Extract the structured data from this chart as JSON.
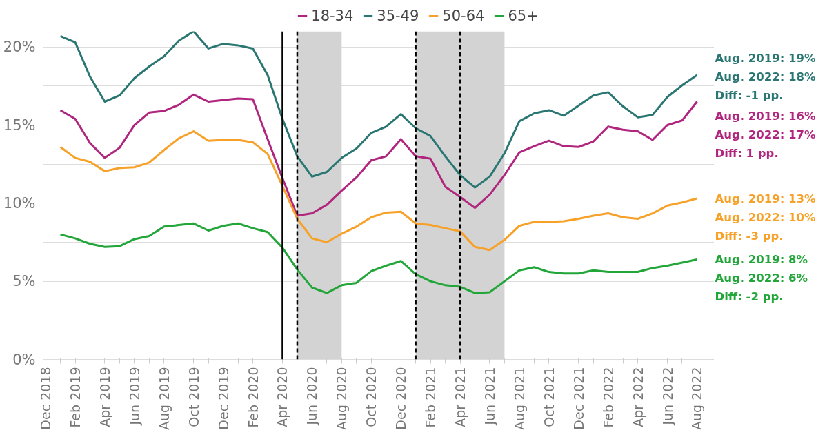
{
  "chart_data": {
    "type": "line",
    "x": [
      "2019-01",
      "2019-02",
      "2019-03",
      "2019-04",
      "2019-05",
      "2019-06",
      "2019-07",
      "2019-08",
      "2019-09",
      "2019-10",
      "2019-11",
      "2019-12",
      "2020-01",
      "2020-02",
      "2020-03",
      "2020-04",
      "2020-05",
      "2020-06",
      "2020-07",
      "2020-08",
      "2020-09",
      "2020-10",
      "2020-11",
      "2020-12",
      "2021-01",
      "2021-02",
      "2021-03",
      "2021-04",
      "2021-05",
      "2021-06",
      "2021-07",
      "2021-08",
      "2021-09",
      "2021-10",
      "2021-11",
      "2021-12",
      "2022-01",
      "2022-02",
      "2022-03",
      "2022-04",
      "2022-05",
      "2022-06",
      "2022-07",
      "2022-08"
    ],
    "series": [
      {
        "name": "18-34",
        "color": "#b0267e",
        "values": [
          15.95,
          15.4,
          13.85,
          12.9,
          13.55,
          15.0,
          15.8,
          15.9,
          16.3,
          16.95,
          16.5,
          16.6,
          16.7,
          16.65,
          14.1,
          11.6,
          9.2,
          9.35,
          9.9,
          10.8,
          11.65,
          12.75,
          13.0,
          14.1,
          13.0,
          12.85,
          11.05,
          10.4,
          9.7,
          10.55,
          11.8,
          13.25,
          13.65,
          14.0,
          13.65,
          13.6,
          13.95,
          14.9,
          14.7,
          14.6,
          14.05,
          15.0,
          15.3,
          16.5
        ]
      },
      {
        "name": "35-49",
        "color": "#2a7672",
        "values": [
          20.7,
          20.3,
          18.1,
          16.5,
          16.9,
          18.0,
          18.75,
          19.4,
          20.4,
          21.0,
          19.9,
          20.2,
          20.1,
          19.9,
          18.2,
          15.4,
          13.0,
          11.7,
          12.0,
          12.9,
          13.5,
          14.5,
          14.9,
          15.7,
          14.8,
          14.3,
          13.0,
          11.8,
          11.0,
          11.7,
          13.2,
          15.25,
          15.75,
          15.95,
          15.6,
          16.25,
          16.9,
          17.1,
          16.2,
          15.5,
          15.65,
          16.8,
          17.55,
          18.2
        ]
      },
      {
        "name": "50-64",
        "color": "#f7a128",
        "values": [
          13.6,
          12.9,
          12.65,
          12.05,
          12.25,
          12.3,
          12.6,
          13.4,
          14.15,
          14.6,
          14.0,
          14.05,
          14.05,
          13.9,
          13.15,
          11.1,
          9.0,
          7.75,
          7.5,
          8.05,
          8.5,
          9.1,
          9.4,
          9.45,
          8.7,
          8.6,
          8.4,
          8.2,
          7.2,
          7.0,
          7.65,
          8.55,
          8.8,
          8.8,
          8.85,
          9.0,
          9.2,
          9.35,
          9.1,
          9.0,
          9.35,
          9.85,
          10.05,
          10.3
        ]
      },
      {
        "name": "65+",
        "color": "#22a63a",
        "values": [
          8.0,
          7.75,
          7.4,
          7.2,
          7.25,
          7.7,
          7.9,
          8.5,
          8.6,
          8.7,
          8.25,
          8.55,
          8.7,
          8.4,
          8.15,
          7.15,
          5.75,
          4.6,
          4.25,
          4.75,
          4.9,
          5.65,
          6.0,
          6.3,
          5.45,
          5.0,
          4.75,
          4.65,
          4.25,
          4.3,
          5.0,
          5.7,
          5.9,
          5.6,
          5.5,
          5.5,
          5.7,
          5.6,
          5.6,
          5.6,
          5.85,
          6.0,
          6.2,
          6.4
        ]
      }
    ],
    "xlim": [
      "2018-11-26",
      "2022-09-06"
    ],
    "xticks": [
      {
        "value": "2018-12",
        "label": "Dec 2018"
      },
      {
        "value": "2019-01",
        "label": null
      },
      {
        "value": "2019-02",
        "label": "Feb 2019"
      },
      {
        "value": "2019-03",
        "label": null
      },
      {
        "value": "2019-04",
        "label": "Apr 2019"
      },
      {
        "value": "2019-05",
        "label": null
      },
      {
        "value": "2019-06",
        "label": "Jun 2019"
      },
      {
        "value": "2019-07",
        "label": null
      },
      {
        "value": "2019-08",
        "label": "Aug 2019"
      },
      {
        "value": "2019-09",
        "label": null
      },
      {
        "value": "2019-10",
        "label": "Oct 2019"
      },
      {
        "value": "2019-11",
        "label": null
      },
      {
        "value": "2019-12",
        "label": "Dec 2019"
      },
      {
        "value": "2020-01",
        "label": null
      },
      {
        "value": "2020-02",
        "label": "Feb 2020"
      },
      {
        "value": "2020-03",
        "label": null
      },
      {
        "value": "2020-04",
        "label": "Apr 2020"
      },
      {
        "value": "2020-05",
        "label": null
      },
      {
        "value": "2020-06",
        "label": "Jun 2020"
      },
      {
        "value": "2020-07",
        "label": null
      },
      {
        "value": "2020-08",
        "label": "Aug 2020"
      },
      {
        "value": "2020-09",
        "label": null
      },
      {
        "value": "2020-10",
        "label": "Oct 2020"
      },
      {
        "value": "2020-11",
        "label": null
      },
      {
        "value": "2020-12",
        "label": "Dec 2020"
      },
      {
        "value": "2021-01",
        "label": null
      },
      {
        "value": "2021-02",
        "label": "Feb 2021"
      },
      {
        "value": "2021-03",
        "label": null
      },
      {
        "value": "2021-04",
        "label": "Apr 2021"
      },
      {
        "value": "2021-05",
        "label": null
      },
      {
        "value": "2021-06",
        "label": "Jun 2021"
      },
      {
        "value": "2021-07",
        "label": null
      },
      {
        "value": "2021-08",
        "label": "Aug 2021"
      },
      {
        "value": "2021-09",
        "label": null
      },
      {
        "value": "2021-10",
        "label": "Oct 2021"
      },
      {
        "value": "2021-11",
        "label": null
      },
      {
        "value": "2021-12",
        "label": "Dec 2021"
      },
      {
        "value": "2022-01",
        "label": null
      },
      {
        "value": "2022-02",
        "label": "Feb 2022"
      },
      {
        "value": "2022-03",
        "label": null
      },
      {
        "value": "2022-04",
        "label": "Apr 2022"
      },
      {
        "value": "2022-05",
        "label": null
      },
      {
        "value": "2022-06",
        "label": "Jun 2022"
      },
      {
        "value": "2022-07",
        "label": null
      },
      {
        "value": "2022-08",
        "label": "Aug 2022"
      }
    ],
    "ylim": [
      0,
      21
    ],
    "yticks": [
      {
        "value": 0,
        "label": "0%"
      },
      {
        "value": 2.5,
        "label": null
      },
      {
        "value": 5,
        "label": "5%"
      },
      {
        "value": 7.5,
        "label": null
      },
      {
        "value": 10,
        "label": "10%"
      },
      {
        "value": 12.5,
        "label": null
      },
      {
        "value": 15,
        "label": "15%"
      },
      {
        "value": 17.5,
        "label": null
      },
      {
        "value": 20,
        "label": "20%"
      }
    ],
    "grid": "y",
    "legend": "top",
    "line_style": "solid",
    "ref_lines": [
      {
        "axis": "x",
        "value": "2020-04",
        "color": "#000000",
        "line_style": "solid"
      },
      {
        "axis": "x",
        "value": "2020-05",
        "color": "#000000",
        "line_style": "dashed"
      },
      {
        "axis": "x",
        "value": "2021-01",
        "color": "#000000",
        "line_style": "dashed"
      },
      {
        "axis": "x",
        "value": "2021-04",
        "color": "#000000",
        "line_style": "dashed"
      }
    ],
    "bands": [
      {
        "axis": "x",
        "from": "2020-05",
        "to": "2020-08",
        "color": "#d3d3d3"
      },
      {
        "axis": "x",
        "from": "2021-01",
        "to": "2021-07",
        "color": "#d3d3d3"
      }
    ],
    "annotations": [
      "Aug. 2019: 19%",
      "Aug. 2022: 18%",
      "Diff: -1 pp.",
      "Aug. 2019: 16%",
      "Aug. 2022: 17%",
      "Diff: 1 pp.",
      "Aug. 2019: 13%",
      "Aug. 2022: 10%",
      "Diff: -3 pp.",
      "Aug. 2019: 8%",
      "Aug. 2022: 6%",
      "Diff: -2 pp."
    ]
  }
}
